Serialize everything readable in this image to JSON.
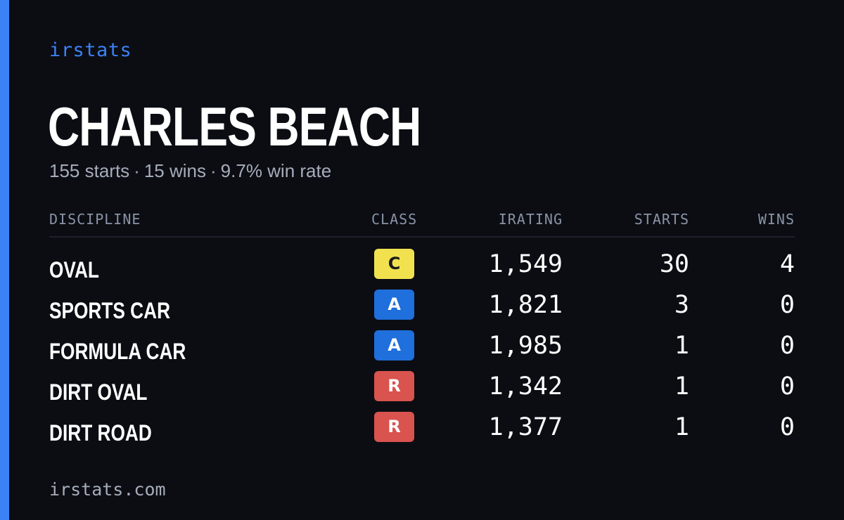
{
  "brand": "irstats",
  "driver": {
    "name": "CHARLES BEACH"
  },
  "summary": {
    "starts": "155 starts",
    "wins": "15 wins",
    "win_rate": "9.7% win rate",
    "separator": "·"
  },
  "table": {
    "headers": {
      "discipline": "DISCIPLINE",
      "class": "CLASS",
      "irating": "IRATING",
      "starts": "STARTS",
      "wins": "WINS"
    },
    "rows": [
      {
        "discipline": "OVAL",
        "class": "C",
        "irating": "1,549",
        "starts": "30",
        "wins": "4"
      },
      {
        "discipline": "SPORTS CAR",
        "class": "A",
        "irating": "1,821",
        "starts": "3",
        "wins": "0"
      },
      {
        "discipline": "FORMULA CAR",
        "class": "A",
        "irating": "1,985",
        "starts": "1",
        "wins": "0"
      },
      {
        "discipline": "DIRT OVAL",
        "class": "R",
        "irating": "1,342",
        "starts": "1",
        "wins": "0"
      },
      {
        "discipline": "DIRT ROAD",
        "class": "R",
        "irating": "1,377",
        "starts": "1",
        "wins": "0"
      }
    ]
  },
  "class_colors": {
    "C": {
      "bg": "#f2e14f",
      "fg": "#1a1a1a"
    },
    "A": {
      "bg": "#1f6fdc",
      "fg": "#ffffff"
    },
    "R": {
      "bg": "#d9534f",
      "fg": "#ffffff"
    }
  },
  "footer": {
    "url": "irstats.com"
  },
  "colors": {
    "background": "#0b0d13",
    "accent": "#3b82f6",
    "muted_text": "#a6acba"
  }
}
